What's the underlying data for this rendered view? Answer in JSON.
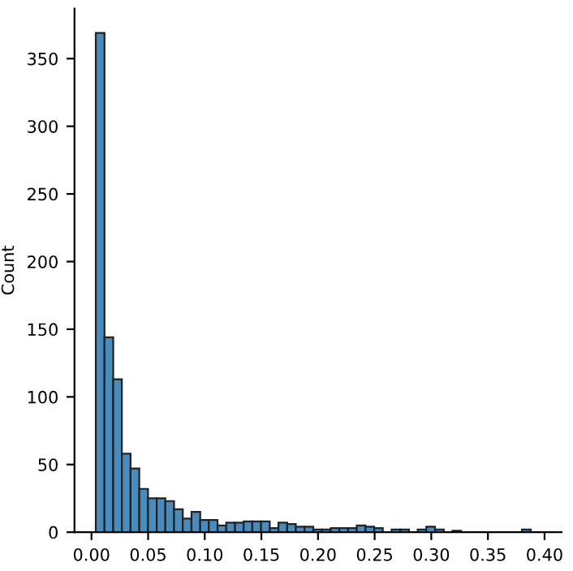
{
  "chart_data": {
    "type": "histogram",
    "ylabel": "Count",
    "color": "#4a8bbe",
    "bins": [
      0.0038,
      0.0115,
      0.0192,
      0.0268,
      0.0345,
      0.0422,
      0.0499,
      0.0576,
      0.0652,
      0.0729,
      0.0806,
      0.0883,
      0.096,
      0.1036,
      0.1113,
      0.119,
      0.1267,
      0.1344,
      0.142,
      0.1497,
      0.1574,
      0.1651,
      0.1728,
      0.1804,
      0.1881,
      0.1958,
      0.2035,
      0.2112,
      0.2188,
      0.2265,
      0.2342,
      0.2419,
      0.2496,
      0.2572,
      0.2649,
      0.2726,
      0.2803,
      0.288,
      0.2956,
      0.3033,
      0.311,
      0.3187,
      0.3264,
      0.334,
      0.3417,
      0.3494,
      0.3571,
      0.3648,
      0.3724,
      0.3801,
      0.3878
    ],
    "values": [
      369,
      144,
      113,
      58,
      47,
      32,
      25,
      25,
      23,
      17,
      10,
      15,
      9,
      9,
      5,
      7,
      7,
      8,
      8,
      8,
      3,
      7,
      6,
      4,
      4,
      2,
      2,
      3,
      3,
      3,
      5,
      4,
      3,
      0,
      2,
      2,
      0,
      2,
      4,
      2,
      0,
      1,
      0,
      0,
      0,
      0,
      0,
      0,
      0,
      2
    ],
    "xlim": [
      -0.015,
      0.415
    ],
    "xticks": [
      {
        "value": 0,
        "label": "0.00"
      },
      0.05,
      {
        "value": 0.1,
        "label": "0.10"
      },
      0.15,
      {
        "value": 0.2,
        "label": "0.20"
      },
      0.25,
      {
        "value": 0.3,
        "label": "0.30"
      },
      0.35,
      {
        "value": 0.4,
        "label": "0.40"
      }
    ],
    "ylim": [
      0,
      387
    ],
    "yticks": [
      0,
      50,
      100,
      150,
      200,
      250,
      300,
      350
    ],
    "grid": false
  }
}
